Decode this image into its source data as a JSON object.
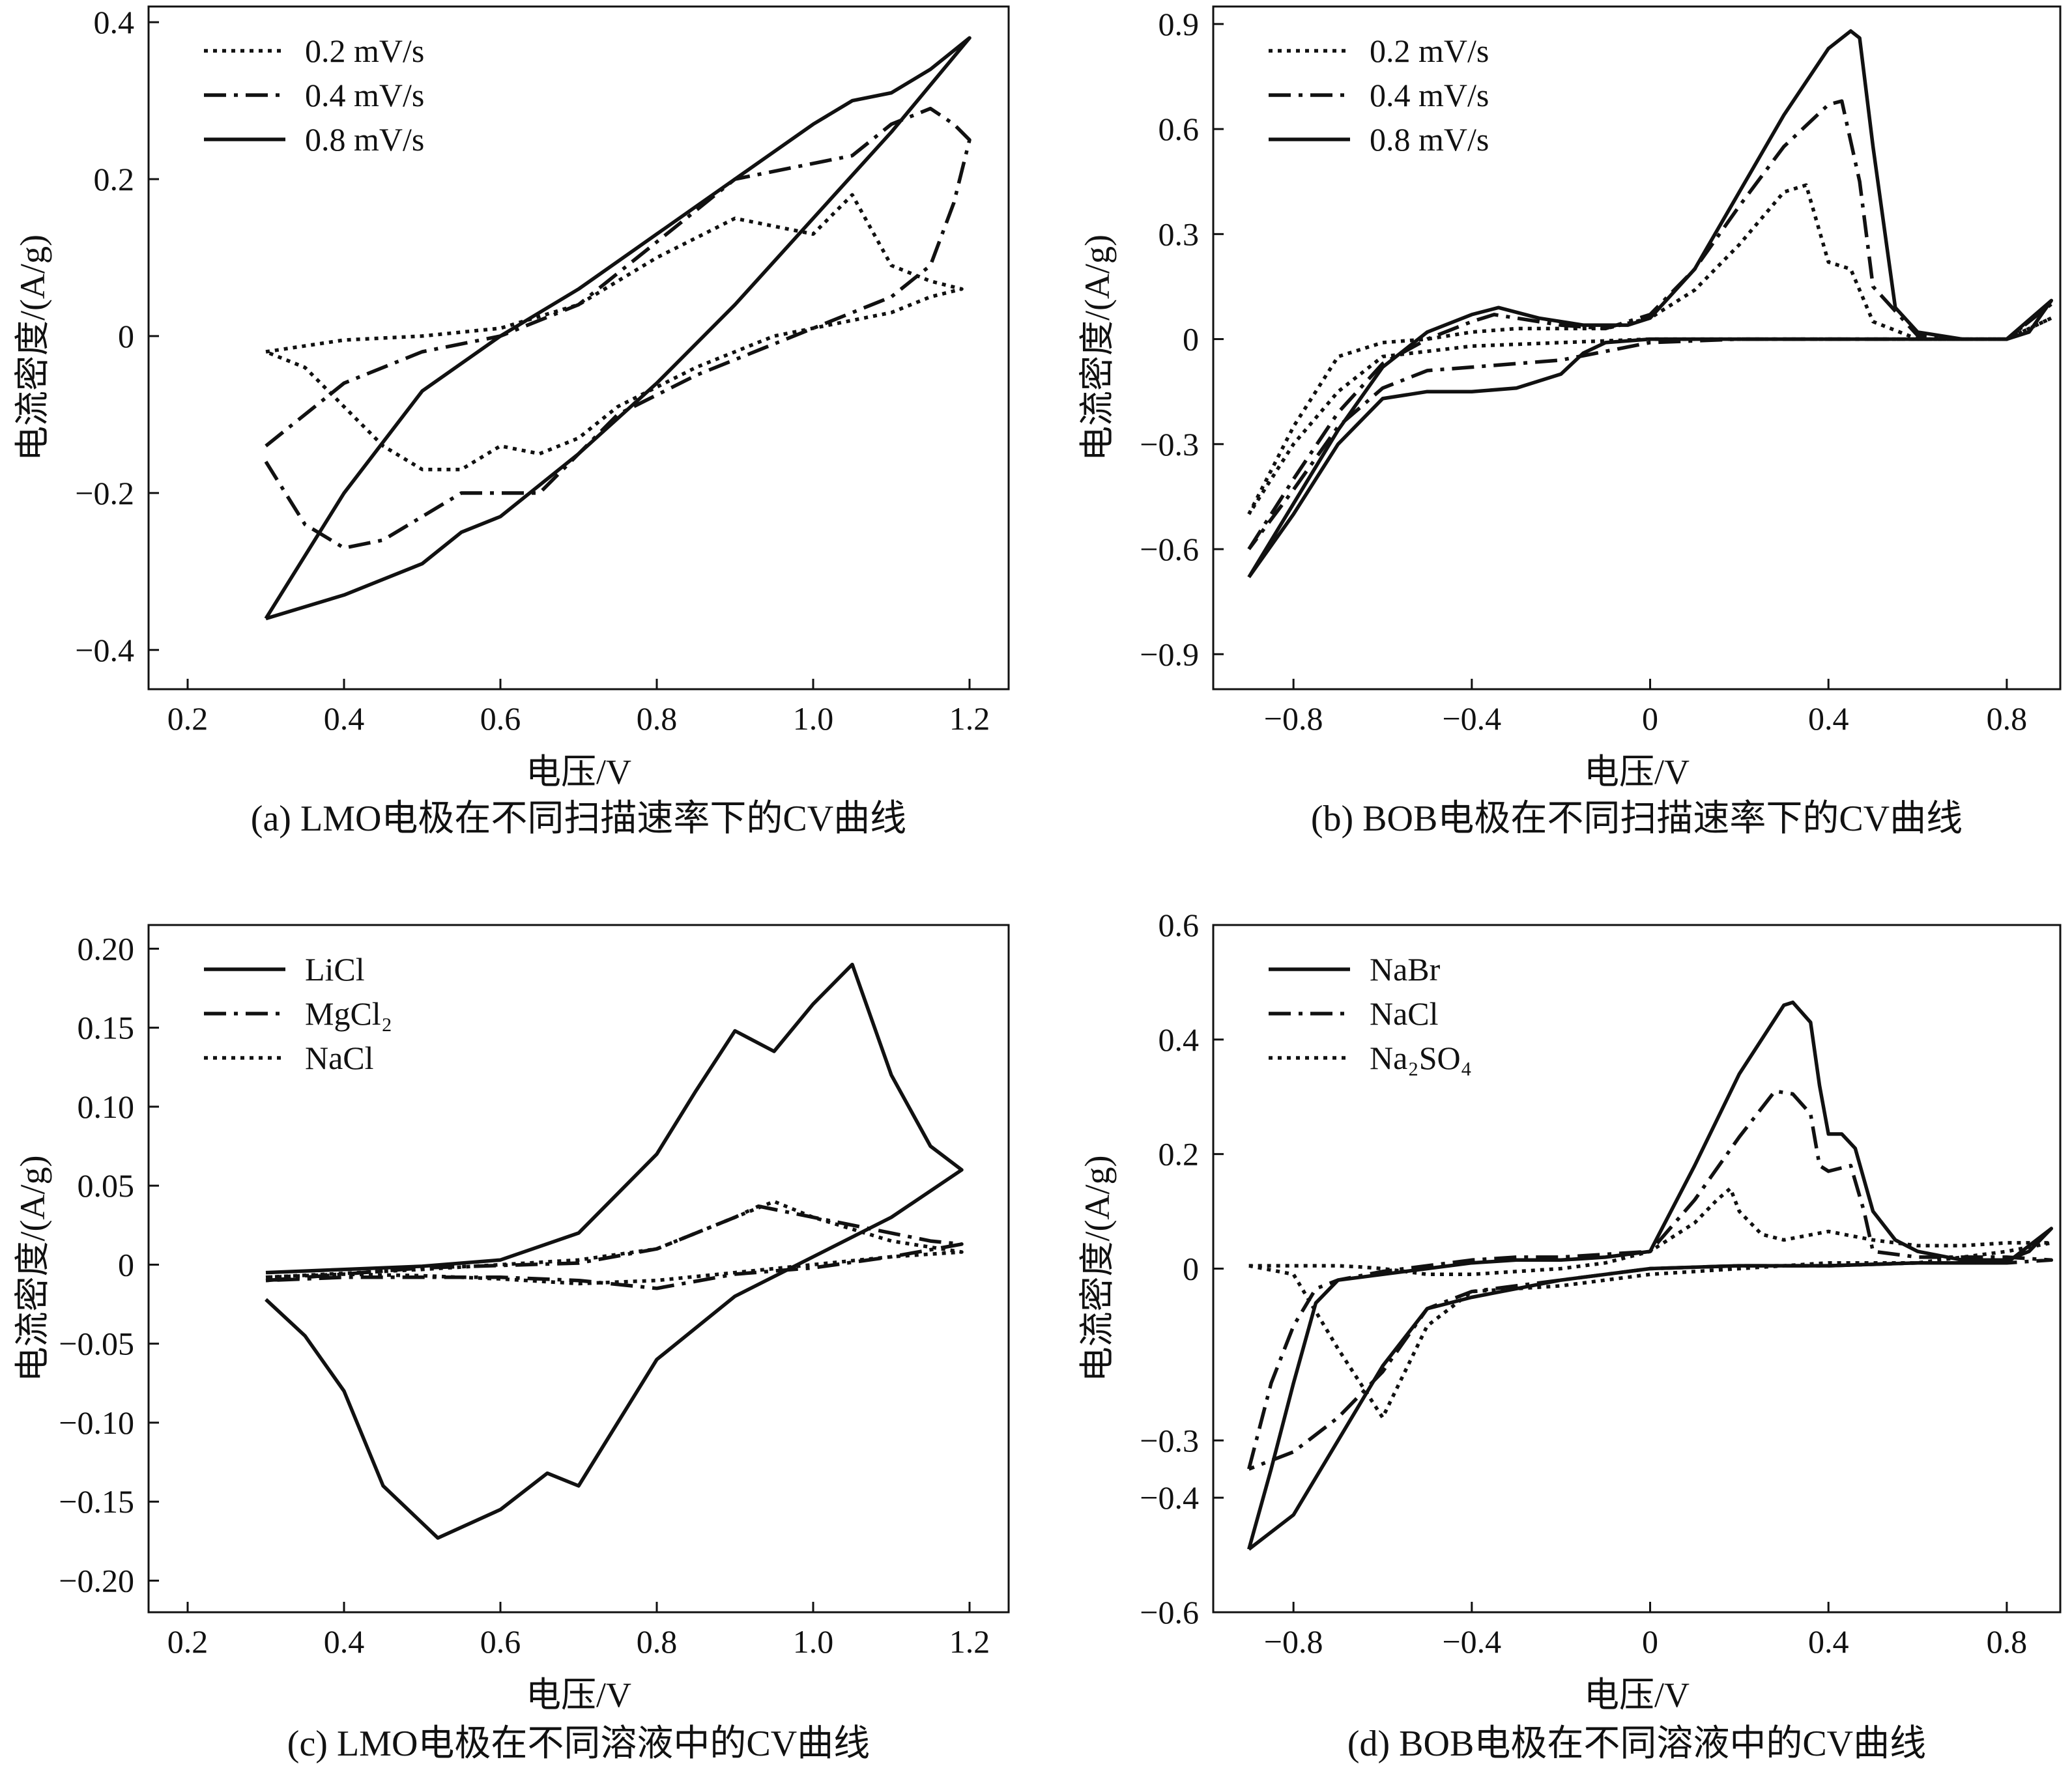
{
  "chart_data": [
    {
      "id": "a",
      "type": "line",
      "title": "(a) LMO电极在不同扫描速率下的CV曲线",
      "xlabel": "电压/V",
      "ylabel": "电流密度/(A/g)",
      "xlim": [
        0.15,
        1.25
      ],
      "ylim": [
        -0.45,
        0.42
      ],
      "xticks": [
        0.2,
        0.4,
        0.6,
        0.8,
        1.0,
        1.2
      ],
      "xtick_labels": [
        "0.2",
        "0.4",
        "0.6",
        "0.8",
        "1.0",
        "1.2"
      ],
      "yticks": [
        -0.4,
        -0.2,
        0,
        0.2,
        0.4
      ],
      "ytick_labels": [
        "−0.4",
        "−0.2",
        "0",
        "0.2",
        "0.4"
      ],
      "legend_position": "top-left",
      "series": [
        {
          "name": "0.2 mV/s",
          "style": "dotted",
          "x": [
            0.3,
            0.4,
            0.5,
            0.6,
            0.7,
            0.8,
            0.9,
            0.95,
            1.0,
            1.05,
            1.1,
            1.15,
            1.19,
            1.15,
            1.1,
            1.05,
            0.95,
            0.85,
            0.75,
            0.7,
            0.65,
            0.6,
            0.55,
            0.5,
            0.45,
            0.4,
            0.35,
            0.3
          ],
          "y": [
            -0.02,
            -0.005,
            0.0,
            0.01,
            0.04,
            0.1,
            0.15,
            0.14,
            0.13,
            0.18,
            0.09,
            0.07,
            0.06,
            0.05,
            0.03,
            0.02,
            0.0,
            -0.04,
            -0.09,
            -0.13,
            -0.15,
            -0.14,
            -0.17,
            -0.17,
            -0.14,
            -0.09,
            -0.04,
            -0.02
          ]
        },
        {
          "name": "0.4 mV/s",
          "style": "dashdot",
          "x": [
            0.3,
            0.4,
            0.5,
            0.6,
            0.7,
            0.8,
            0.9,
            1.0,
            1.05,
            1.1,
            1.15,
            1.18,
            1.2,
            1.18,
            1.15,
            1.1,
            1.05,
            0.95,
            0.85,
            0.75,
            0.65,
            0.55,
            0.45,
            0.4,
            0.35,
            0.3
          ],
          "y": [
            -0.14,
            -0.06,
            -0.02,
            0.0,
            0.04,
            0.12,
            0.2,
            0.22,
            0.23,
            0.27,
            0.29,
            0.27,
            0.25,
            0.17,
            0.09,
            0.05,
            0.03,
            -0.01,
            -0.05,
            -0.1,
            -0.2,
            -0.2,
            -0.26,
            -0.27,
            -0.24,
            -0.16
          ]
        },
        {
          "name": "0.8 mV/s",
          "style": "solid",
          "x": [
            0.3,
            0.4,
            0.5,
            0.6,
            0.7,
            0.8,
            0.9,
            1.0,
            1.05,
            1.1,
            1.15,
            1.2,
            1.1,
            1.0,
            0.9,
            0.8,
            0.7,
            0.6,
            0.55,
            0.5,
            0.4,
            0.3
          ],
          "y": [
            -0.36,
            -0.2,
            -0.07,
            0.0,
            0.06,
            0.13,
            0.2,
            0.27,
            0.3,
            0.31,
            0.34,
            0.38,
            0.26,
            0.15,
            0.04,
            -0.06,
            -0.15,
            -0.23,
            -0.25,
            -0.29,
            -0.33,
            -0.36
          ]
        }
      ]
    },
    {
      "id": "b",
      "type": "line",
      "title": "(b) BOB电极在不同扫描速率下的CV曲线",
      "xlabel": "电压/V",
      "ylabel": "电流密度/(A/g)",
      "xlim": [
        -0.98,
        0.92
      ],
      "ylim": [
        -1.0,
        0.95
      ],
      "xticks": [
        -0.8,
        -0.4,
        0,
        0.4,
        0.8
      ],
      "xtick_labels": [
        "−0.8",
        "−0.4",
        "0",
        "0.4",
        "0.8"
      ],
      "yticks": [
        -0.9,
        -0.6,
        -0.3,
        0,
        0.3,
        0.6,
        0.9
      ],
      "ytick_labels": [
        "−0.9",
        "−0.6",
        "−0.3",
        "0",
        "0.3",
        "0.6",
        "0.9"
      ],
      "legend_position": "top-left",
      "series": [
        {
          "name": "0.2 mV/s",
          "style": "dotted",
          "x": [
            -0.9,
            -0.8,
            -0.7,
            -0.6,
            -0.5,
            -0.4,
            -0.3,
            -0.2,
            -0.1,
            0.0,
            0.1,
            0.2,
            0.3,
            0.35,
            0.4,
            0.45,
            0.5,
            0.6,
            0.7,
            0.8,
            0.9,
            0.8,
            0.6,
            0.4,
            0.2,
            0.0,
            -0.2,
            -0.4,
            -0.6,
            -0.7,
            -0.8,
            -0.9
          ],
          "y": [
            -0.5,
            -0.25,
            -0.05,
            -0.01,
            0.0,
            0.02,
            0.03,
            0.03,
            0.03,
            0.06,
            0.14,
            0.27,
            0.42,
            0.44,
            0.22,
            0.2,
            0.05,
            0.0,
            0.0,
            0.0,
            0.06,
            0.0,
            0.0,
            0.0,
            0.0,
            0.0,
            -0.01,
            -0.02,
            -0.05,
            -0.15,
            -0.3,
            -0.5
          ]
        },
        {
          "name": "0.4 mV/s",
          "style": "dashdot",
          "x": [
            -0.9,
            -0.8,
            -0.7,
            -0.6,
            -0.5,
            -0.4,
            -0.35,
            -0.3,
            -0.2,
            -0.1,
            0.0,
            0.1,
            0.2,
            0.3,
            0.4,
            0.43,
            0.47,
            0.5,
            0.6,
            0.7,
            0.8,
            0.9,
            0.8,
            0.6,
            0.4,
            0.2,
            0.0,
            -0.2,
            -0.4,
            -0.5,
            -0.6,
            -0.7,
            -0.8,
            -0.9
          ],
          "y": [
            -0.6,
            -0.4,
            -0.21,
            -0.07,
            0.0,
            0.05,
            0.07,
            0.06,
            0.04,
            0.03,
            0.07,
            0.2,
            0.38,
            0.55,
            0.67,
            0.68,
            0.45,
            0.15,
            0.01,
            0.0,
            0.0,
            0.1,
            0.0,
            0.0,
            0.0,
            0.0,
            -0.01,
            -0.06,
            -0.08,
            -0.09,
            -0.14,
            -0.25,
            -0.43,
            -0.6
          ]
        },
        {
          "name": "0.8 mV/s",
          "style": "solid",
          "x": [
            -0.9,
            -0.8,
            -0.7,
            -0.6,
            -0.5,
            -0.4,
            -0.34,
            -0.25,
            -0.15,
            -0.05,
            0.0,
            0.1,
            0.2,
            0.3,
            0.4,
            0.45,
            0.47,
            0.5,
            0.55,
            0.6,
            0.7,
            0.8,
            0.85,
            0.9,
            0.8,
            0.6,
            0.4,
            0.2,
            0.0,
            -0.1,
            -0.15,
            -0.2,
            -0.3,
            -0.4,
            -0.5,
            -0.6,
            -0.7,
            -0.8,
            -0.9
          ],
          "y": [
            -0.68,
            -0.47,
            -0.26,
            -0.08,
            0.02,
            0.07,
            0.09,
            0.06,
            0.04,
            0.04,
            0.06,
            0.2,
            0.42,
            0.64,
            0.83,
            0.88,
            0.86,
            0.55,
            0.09,
            0.02,
            0.0,
            0.0,
            0.02,
            0.11,
            0.0,
            0.0,
            0.0,
            0.0,
            0.0,
            -0.01,
            -0.04,
            -0.1,
            -0.14,
            -0.15,
            -0.15,
            -0.17,
            -0.3,
            -0.5,
            -0.68
          ]
        }
      ]
    },
    {
      "id": "c",
      "type": "line",
      "title": "(c) LMO电极在不同溶液中的CV曲线",
      "xlabel": "电压/V",
      "ylabel": "电流密度/(A/g)",
      "xlim": [
        0.15,
        1.25
      ],
      "ylim": [
        -0.22,
        0.215
      ],
      "xticks": [
        0.2,
        0.4,
        0.6,
        0.8,
        1.0,
        1.2
      ],
      "xtick_labels": [
        "0.2",
        "0.4",
        "0.6",
        "0.8",
        "1.0",
        "1.2"
      ],
      "yticks": [
        -0.2,
        -0.15,
        -0.1,
        -0.05,
        0,
        0.05,
        0.1,
        0.15,
        0.2
      ],
      "ytick_labels": [
        "−0.20",
        "−0.15",
        "−0.10",
        "−0.05",
        "0",
        "0.05",
        "0.10",
        "0.15",
        "0.20"
      ],
      "legend_position": "top-left",
      "series": [
        {
          "name": "LiCl",
          "style": "solid",
          "x": [
            0.3,
            0.4,
            0.5,
            0.6,
            0.7,
            0.8,
            0.85,
            0.9,
            0.95,
            1.0,
            1.05,
            1.1,
            1.15,
            1.19,
            1.1,
            1.0,
            0.9,
            0.8,
            0.75,
            0.7,
            0.66,
            0.6,
            0.52,
            0.45,
            0.4,
            0.35,
            0.3
          ],
          "y": [
            -0.005,
            -0.003,
            -0.001,
            0.003,
            0.02,
            0.07,
            0.11,
            0.148,
            0.135,
            0.165,
            0.19,
            0.12,
            0.075,
            0.06,
            0.03,
            0.005,
            -0.02,
            -0.06,
            -0.1,
            -0.14,
            -0.132,
            -0.155,
            -0.173,
            -0.14,
            -0.08,
            -0.045,
            -0.022
          ]
        },
        {
          "name": "MgCl₂",
          "style": "dashdot",
          "x": [
            0.3,
            0.5,
            0.7,
            0.8,
            0.9,
            0.93,
            1.0,
            1.1,
            1.15,
            1.19,
            1.1,
            1.0,
            0.9,
            0.8,
            0.7,
            0.6,
            0.5,
            0.4,
            0.3
          ],
          "y": [
            -0.01,
            -0.002,
            0.001,
            0.01,
            0.03,
            0.037,
            0.03,
            0.02,
            0.015,
            0.013,
            0.005,
            -0.002,
            -0.006,
            -0.015,
            -0.01,
            -0.008,
            -0.008,
            -0.008,
            -0.01
          ]
        },
        {
          "name": "NaCl",
          "style": "dotted",
          "x": [
            0.3,
            0.5,
            0.7,
            0.8,
            0.9,
            0.95,
            1.0,
            1.1,
            1.19,
            1.1,
            1.0,
            0.9,
            0.8,
            0.7,
            0.6,
            0.5,
            0.4,
            0.3
          ],
          "y": [
            -0.008,
            -0.003,
            0.003,
            0.01,
            0.03,
            0.04,
            0.03,
            0.015,
            0.008,
            0.005,
            0.0,
            -0.005,
            -0.01,
            -0.012,
            -0.009,
            -0.007,
            -0.006,
            -0.008
          ]
        }
      ]
    },
    {
      "id": "d",
      "type": "line",
      "title": "(d) BOB电极在不同溶液中的CV曲线",
      "xlabel": "电压/V",
      "ylabel": "电流密度/(A/g)",
      "xlim": [
        -0.98,
        0.92
      ],
      "ylim": [
        -0.6,
        0.6
      ],
      "xticks": [
        -0.8,
        -0.4,
        0,
        0.4,
        0.8
      ],
      "xtick_labels": [
        "−0.8",
        "−0.4",
        "0",
        "0.4",
        "0.8"
      ],
      "yticks": [
        -0.6,
        -0.4,
        -0.3,
        0,
        0.2,
        0.4,
        0.6
      ],
      "ytick_labels": [
        "−0.6",
        "−0.4",
        "−0.3",
        "0",
        "0.2",
        "0.4",
        "0.6"
      ],
      "legend_position": "top-left",
      "series": [
        {
          "name": "NaBr",
          "style": "solid",
          "x": [
            -0.9,
            -0.85,
            -0.8,
            -0.75,
            -0.7,
            -0.6,
            -0.5,
            -0.4,
            -0.3,
            -0.2,
            -0.1,
            0.0,
            0.1,
            0.2,
            0.3,
            0.32,
            0.36,
            0.38,
            0.4,
            0.43,
            0.46,
            0.5,
            0.55,
            0.6,
            0.7,
            0.8,
            0.85,
            0.9,
            0.8,
            0.6,
            0.4,
            0.2,
            0.0,
            -0.2,
            -0.4,
            -0.5,
            -0.6,
            -0.7,
            -0.8,
            -0.9
          ],
          "y": [
            -0.49,
            -0.35,
            -0.2,
            -0.06,
            -0.02,
            -0.01,
            0.0,
            0.01,
            0.015,
            0.015,
            0.02,
            0.03,
            0.18,
            0.34,
            0.46,
            0.465,
            0.43,
            0.32,
            0.235,
            0.235,
            0.21,
            0.1,
            0.05,
            0.03,
            0.015,
            0.015,
            0.03,
            0.07,
            0.01,
            0.01,
            0.005,
            0.005,
            0.0,
            -0.02,
            -0.05,
            -0.07,
            -0.17,
            -0.3,
            -0.43,
            -0.49
          ]
        },
        {
          "name": "NaCl",
          "style": "dashdot",
          "x": [
            -0.9,
            -0.85,
            -0.8,
            -0.75,
            -0.7,
            -0.6,
            -0.5,
            -0.4,
            -0.3,
            -0.2,
            -0.1,
            0.0,
            0.1,
            0.2,
            0.28,
            0.32,
            0.36,
            0.38,
            0.4,
            0.45,
            0.48,
            0.5,
            0.6,
            0.8,
            0.9,
            0.8,
            0.6,
            0.4,
            0.2,
            0.0,
            -0.2,
            -0.4,
            -0.5,
            -0.6,
            -0.7,
            -0.8,
            -0.9
          ],
          "y": [
            -0.35,
            -0.2,
            -0.1,
            -0.035,
            -0.02,
            -0.005,
            0.005,
            0.015,
            0.02,
            0.02,
            0.025,
            0.03,
            0.12,
            0.23,
            0.31,
            0.305,
            0.27,
            0.18,
            0.17,
            0.18,
            0.1,
            0.03,
            0.02,
            0.02,
            0.015,
            0.01,
            0.01,
            0.005,
            0.005,
            0.0,
            -0.02,
            -0.04,
            -0.07,
            -0.18,
            -0.26,
            -0.32,
            -0.35
          ]
        },
        {
          "name": "Na₂SO₄",
          "style": "dotted",
          "x": [
            -0.9,
            -0.8,
            -0.75,
            -0.7,
            -0.65,
            -0.6,
            -0.55,
            -0.5,
            -0.4,
            -0.3,
            -0.2,
            -0.1,
            0.0,
            0.1,
            0.15,
            0.18,
            0.2,
            0.25,
            0.3,
            0.4,
            0.5,
            0.6,
            0.7,
            0.8,
            0.9,
            0.8,
            0.6,
            0.4,
            0.2,
            0.0,
            -0.2,
            -0.4,
            -0.5,
            -0.6,
            -0.7,
            -0.8,
            -0.9
          ],
          "y": [
            0.005,
            0.005,
            0.005,
            0.005,
            0.003,
            0.0,
            -0.005,
            -0.01,
            -0.01,
            -0.005,
            0.0,
            0.01,
            0.03,
            0.08,
            0.12,
            0.14,
            0.1,
            0.06,
            0.05,
            0.065,
            0.05,
            0.04,
            0.04,
            0.045,
            0.045,
            0.03,
            0.01,
            0.01,
            0.0,
            -0.01,
            -0.03,
            -0.04,
            -0.1,
            -0.26,
            -0.14,
            -0.01,
            0.005
          ]
        }
      ]
    }
  ]
}
